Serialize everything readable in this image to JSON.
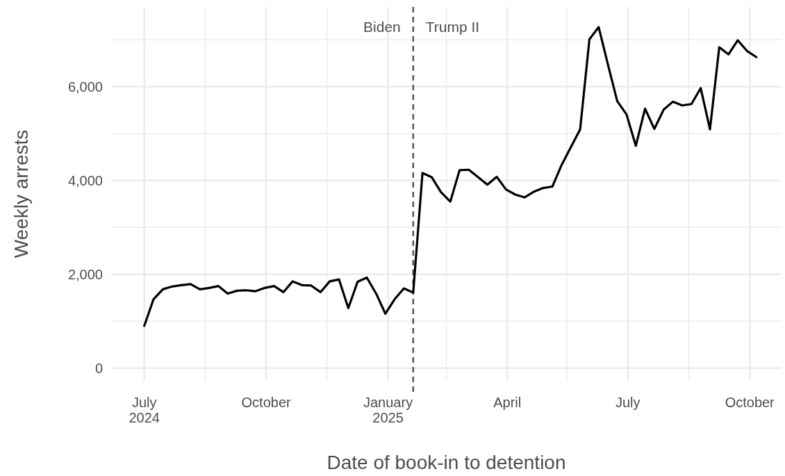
{
  "chart_data": {
    "type": "line",
    "xlabel": "Date of book-in to detention",
    "ylabel": "Weekly arrests",
    "x": [
      "2024-07-01",
      "2024-07-08",
      "2024-07-15",
      "2024-07-22",
      "2024-07-29",
      "2024-08-05",
      "2024-08-12",
      "2024-08-19",
      "2024-08-26",
      "2024-09-02",
      "2024-09-09",
      "2024-09-16",
      "2024-09-23",
      "2024-09-30",
      "2024-10-07",
      "2024-10-14",
      "2024-10-21",
      "2024-10-28",
      "2024-11-04",
      "2024-11-11",
      "2024-11-18",
      "2024-11-25",
      "2024-12-02",
      "2024-12-09",
      "2024-12-16",
      "2024-12-23",
      "2024-12-30",
      "2025-01-06",
      "2025-01-13",
      "2025-01-20",
      "2025-01-27",
      "2025-02-03",
      "2025-02-10",
      "2025-02-17",
      "2025-02-24",
      "2025-03-03",
      "2025-03-10",
      "2025-03-17",
      "2025-03-24",
      "2025-03-31",
      "2025-04-07",
      "2025-04-14",
      "2025-04-21",
      "2025-04-28",
      "2025-05-05",
      "2025-05-12",
      "2025-05-19",
      "2025-05-26",
      "2025-06-02",
      "2025-06-09",
      "2025-06-16",
      "2025-06-23",
      "2025-06-30",
      "2025-07-07",
      "2025-07-14",
      "2025-07-21",
      "2025-07-28",
      "2025-08-04",
      "2025-08-11",
      "2025-08-18",
      "2025-08-25",
      "2025-09-01",
      "2025-09-08",
      "2025-09-15",
      "2025-09-22",
      "2025-09-29",
      "2025-10-06"
    ],
    "series": [
      {
        "color": "#000000",
        "values": [
          900,
          1470,
          1680,
          1740,
          1770,
          1790,
          1680,
          1710,
          1750,
          1590,
          1650,
          1660,
          1640,
          1710,
          1750,
          1620,
          1850,
          1770,
          1760,
          1620,
          1850,
          1890,
          1280,
          1840,
          1930,
          1590,
          1160,
          1470,
          1700,
          1610,
          4160,
          4070,
          3750,
          3550,
          4220,
          4230,
          4070,
          3910,
          4080,
          3810,
          3700,
          3640,
          3760,
          3840,
          3870,
          4330,
          4710,
          5090,
          7010,
          7270,
          6470,
          5690,
          5410,
          4740,
          5530,
          5100,
          5510,
          5680,
          5600,
          5630,
          5970,
          5090,
          6840,
          6690,
          6990,
          6760,
          6630
        ]
      }
    ],
    "xlim": [
      "2024-06-06",
      "2025-10-25"
    ],
    "xticks": [
      {
        "value": "2024-07-01",
        "label": "July\n2024"
      },
      {
        "value": "2024-08-16",
        "label": null
      },
      {
        "value": "2024-10-01",
        "label": "October"
      },
      {
        "value": "2024-11-16",
        "label": null
      },
      {
        "value": "2025-01-01",
        "label": "January\n2025"
      },
      {
        "value": "2025-02-14",
        "label": null
      },
      {
        "value": "2025-04-01",
        "label": "April"
      },
      {
        "value": "2025-05-16",
        "label": null
      },
      {
        "value": "2025-07-01",
        "label": "July"
      },
      {
        "value": "2025-08-16",
        "label": null
      },
      {
        "value": "2025-10-01",
        "label": "October"
      }
    ],
    "ylim": [
      -270,
      7700
    ],
    "yticks": [
      {
        "value": 0,
        "label": "0"
      },
      {
        "value": 1000,
        "label": null
      },
      {
        "value": 2000,
        "label": "2,000"
      },
      {
        "value": 3000,
        "label": null
      },
      {
        "value": 4000,
        "label": "4,000"
      },
      {
        "value": 5000,
        "label": null
      },
      {
        "value": 6000,
        "label": "6,000"
      },
      {
        "value": 7000,
        "label": null
      }
    ],
    "ref_lines": [
      {
        "axis": "x",
        "value": "2025-01-20",
        "color": "#555555",
        "line_style": "dashed"
      }
    ],
    "annotations": [
      "Biden",
      "Trump II"
    ],
    "grid": true,
    "marker": "none",
    "line_style": "solid"
  }
}
